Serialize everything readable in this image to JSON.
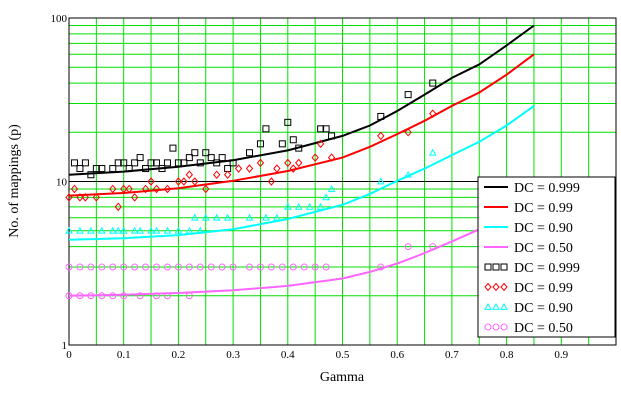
{
  "chart_data": {
    "type": "scatter",
    "title": "",
    "xlabel": "Gamma",
    "ylabel": "No. of mappings (p)",
    "xlim": [
      0,
      1
    ],
    "ylim": [
      1,
      100
    ],
    "yscale": "log",
    "grid": true,
    "grid_color": "#00e000",
    "legend_position": "right",
    "x_ticks": [
      0,
      0.1,
      0.2,
      0.3,
      0.4,
      0.5,
      0.6,
      0.7,
      0.8,
      0.9
    ],
    "x_tick_labels": [
      "0",
      "0.1",
      "0.2",
      "0.3",
      "0.4",
      "0.5",
      "0.6",
      "0.7",
      "0.8",
      "0.9"
    ],
    "y_tick_labels": [
      {
        "value": 100,
        "label": "100"
      },
      {
        "value": 10,
        "label": "10"
      },
      {
        "value": 1,
        "label": "1"
      }
    ],
    "lines": [
      {
        "name": "DC = 0.999",
        "color": "#000000",
        "x": [
          0,
          0.1,
          0.2,
          0.3,
          0.4,
          0.5,
          0.55,
          0.6,
          0.65,
          0.7,
          0.75,
          0.8,
          0.85
        ],
        "y": [
          11,
          11.5,
          12.3,
          13.5,
          15.5,
          19,
          22,
          27,
          34,
          43,
          52,
          68,
          90
        ]
      },
      {
        "name": "DC = 0.99",
        "color": "#ff0000",
        "x": [
          0,
          0.1,
          0.2,
          0.3,
          0.4,
          0.5,
          0.55,
          0.6,
          0.65,
          0.7,
          0.75,
          0.8,
          0.85
        ],
        "y": [
          8.2,
          8.5,
          9.1,
          10.1,
          11.6,
          14,
          16.3,
          19.5,
          23.5,
          29,
          35,
          45,
          60
        ]
      },
      {
        "name": "DC = 0.90",
        "color": "#00ffff",
        "x": [
          0,
          0.1,
          0.2,
          0.3,
          0.4,
          0.5,
          0.55,
          0.6,
          0.65,
          0.7,
          0.75,
          0.8,
          0.85
        ],
        "y": [
          4.4,
          4.5,
          4.7,
          5.1,
          5.9,
          7.2,
          8.4,
          10.1,
          12,
          14.5,
          17.5,
          22,
          29
        ]
      },
      {
        "name": "DC = 0.50",
        "color": "#ff66ff",
        "x": [
          0,
          0.1,
          0.2,
          0.3,
          0.4,
          0.5,
          0.55,
          0.6,
          0.65,
          0.7,
          0.75,
          0.8,
          0.85
        ],
        "y": [
          2.0,
          2.03,
          2.08,
          2.16,
          2.3,
          2.55,
          2.8,
          3.15,
          3.65,
          4.3,
          5.1,
          5.2,
          5.2
        ]
      }
    ],
    "scatter": [
      {
        "name": "DC = 0.999",
        "color": "#000000",
        "marker": "square",
        "points": [
          [
            0.01,
            13
          ],
          [
            0.02,
            12
          ],
          [
            0.03,
            13
          ],
          [
            0.04,
            11
          ],
          [
            0.05,
            12
          ],
          [
            0.06,
            12
          ],
          [
            0.08,
            12
          ],
          [
            0.09,
            13
          ],
          [
            0.1,
            13
          ],
          [
            0.11,
            12
          ],
          [
            0.12,
            13
          ],
          [
            0.13,
            14
          ],
          [
            0.14,
            12
          ],
          [
            0.15,
            13
          ],
          [
            0.16,
            13
          ],
          [
            0.17,
            12
          ],
          [
            0.18,
            13
          ],
          [
            0.19,
            16
          ],
          [
            0.2,
            13
          ],
          [
            0.21,
            13
          ],
          [
            0.22,
            14
          ],
          [
            0.23,
            15
          ],
          [
            0.24,
            13
          ],
          [
            0.25,
            15
          ],
          [
            0.26,
            14
          ],
          [
            0.27,
            13
          ],
          [
            0.28,
            14
          ],
          [
            0.29,
            12
          ],
          [
            0.3,
            13
          ],
          [
            0.33,
            15
          ],
          [
            0.35,
            17
          ],
          [
            0.36,
            21
          ],
          [
            0.39,
            17
          ],
          [
            0.4,
            23
          ],
          [
            0.41,
            18
          ],
          [
            0.42,
            16
          ],
          [
            0.46,
            21
          ],
          [
            0.47,
            21
          ],
          [
            0.48,
            19
          ],
          [
            0.57,
            25
          ],
          [
            0.62,
            34
          ],
          [
            0.665,
            40
          ]
        ]
      },
      {
        "name": "DC = 0.99",
        "color": "#ff0000",
        "marker": "diamond",
        "points": [
          [
            0.0,
            8
          ],
          [
            0.01,
            9
          ],
          [
            0.02,
            8
          ],
          [
            0.03,
            8
          ],
          [
            0.05,
            8
          ],
          [
            0.08,
            9
          ],
          [
            0.09,
            7
          ],
          [
            0.1,
            9
          ],
          [
            0.11,
            9
          ],
          [
            0.12,
            8
          ],
          [
            0.14,
            9
          ],
          [
            0.15,
            10
          ],
          [
            0.16,
            9
          ],
          [
            0.18,
            9
          ],
          [
            0.2,
            10
          ],
          [
            0.21,
            10
          ],
          [
            0.22,
            11
          ],
          [
            0.23,
            10
          ],
          [
            0.25,
            9
          ],
          [
            0.27,
            11
          ],
          [
            0.29,
            11
          ],
          [
            0.31,
            12
          ],
          [
            0.33,
            12
          ],
          [
            0.35,
            13
          ],
          [
            0.37,
            10
          ],
          [
            0.38,
            12
          ],
          [
            0.4,
            13
          ],
          [
            0.41,
            12
          ],
          [
            0.42,
            13
          ],
          [
            0.45,
            14
          ],
          [
            0.46,
            17
          ],
          [
            0.48,
            14
          ],
          [
            0.57,
            19
          ],
          [
            0.62,
            20
          ],
          [
            0.665,
            26
          ]
        ]
      },
      {
        "name": "DC = 0.90",
        "color": "#00ffff",
        "marker": "triangle",
        "points": [
          [
            0.0,
            5
          ],
          [
            0.02,
            5
          ],
          [
            0.04,
            5
          ],
          [
            0.06,
            5
          ],
          [
            0.08,
            5
          ],
          [
            0.09,
            5
          ],
          [
            0.1,
            5
          ],
          [
            0.12,
            5
          ],
          [
            0.13,
            5
          ],
          [
            0.15,
            5
          ],
          [
            0.16,
            5
          ],
          [
            0.18,
            5
          ],
          [
            0.2,
            5
          ],
          [
            0.22,
            5
          ],
          [
            0.24,
            5
          ],
          [
            0.23,
            6
          ],
          [
            0.25,
            6
          ],
          [
            0.27,
            6
          ],
          [
            0.29,
            6
          ],
          [
            0.33,
            6
          ],
          [
            0.36,
            6
          ],
          [
            0.38,
            6
          ],
          [
            0.4,
            7
          ],
          [
            0.42,
            7
          ],
          [
            0.44,
            7
          ],
          [
            0.46,
            7
          ],
          [
            0.47,
            8
          ],
          [
            0.48,
            9
          ],
          [
            0.57,
            10
          ],
          [
            0.62,
            11
          ],
          [
            0.665,
            15
          ]
        ]
      },
      {
        "name": "DC = 0.50",
        "color": "#ff66ff",
        "marker": "circle",
        "points": [
          [
            0.0,
            2
          ],
          [
            0.02,
            2
          ],
          [
            0.04,
            2
          ],
          [
            0.06,
            2
          ],
          [
            0.08,
            2
          ],
          [
            0.1,
            2
          ],
          [
            0.13,
            2
          ],
          [
            0.16,
            2
          ],
          [
            0.18,
            2
          ],
          [
            0.22,
            2
          ],
          [
            0.0,
            3
          ],
          [
            0.02,
            3
          ],
          [
            0.04,
            3
          ],
          [
            0.06,
            3
          ],
          [
            0.08,
            3
          ],
          [
            0.1,
            3
          ],
          [
            0.12,
            3
          ],
          [
            0.14,
            3
          ],
          [
            0.16,
            3
          ],
          [
            0.18,
            3
          ],
          [
            0.2,
            3
          ],
          [
            0.22,
            3
          ],
          [
            0.24,
            3
          ],
          [
            0.26,
            3
          ],
          [
            0.28,
            3
          ],
          [
            0.3,
            3
          ],
          [
            0.33,
            3
          ],
          [
            0.35,
            3
          ],
          [
            0.37,
            3
          ],
          [
            0.39,
            3
          ],
          [
            0.41,
            3
          ],
          [
            0.43,
            3
          ],
          [
            0.45,
            3
          ],
          [
            0.47,
            3
          ],
          [
            0.57,
            3
          ],
          [
            0.62,
            4
          ],
          [
            0.665,
            4
          ]
        ]
      }
    ],
    "legend": [
      {
        "label": "DC = 0.999",
        "kind": "line",
        "color": "#000000"
      },
      {
        "label": "DC = 0.99",
        "kind": "line",
        "color": "#ff0000"
      },
      {
        "label": "DC = 0.90",
        "kind": "line",
        "color": "#00ffff"
      },
      {
        "label": "DC = 0.50",
        "kind": "line",
        "color": "#ff66ff"
      },
      {
        "label": "DC = 0.999",
        "kind": "marker",
        "marker": "square",
        "color": "#000000"
      },
      {
        "label": "DC = 0.99",
        "kind": "marker",
        "marker": "diamond",
        "color": "#ff0000"
      },
      {
        "label": "DC = 0.90",
        "kind": "marker",
        "marker": "triangle",
        "color": "#00ffff"
      },
      {
        "label": "DC = 0.50",
        "kind": "marker",
        "marker": "circle",
        "color": "#ff66ff"
      }
    ]
  }
}
